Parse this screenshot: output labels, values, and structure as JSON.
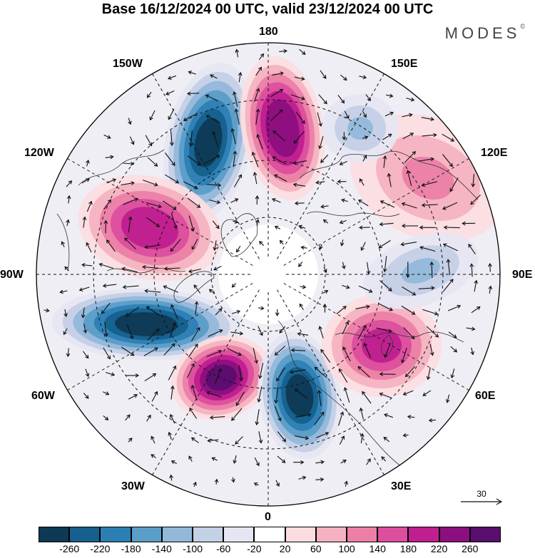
{
  "title": "Base 16/12/2024 00 UTC, valid 23/12/2024 00 UTC",
  "brand": {
    "name": "MODES",
    "mark": "©"
  },
  "longitude_labels": {
    "top": "180",
    "bottom": "0",
    "left": "90W",
    "right": "90E",
    "w150": "150W",
    "e150": "150E",
    "w120": "120W",
    "e120": "120E",
    "w60": "60W",
    "e60": "60E",
    "w30": "30W",
    "e30": "30E"
  },
  "reference_vector": {
    "label": "30"
  },
  "colorbar": {
    "ticks": [
      "-260",
      "-220",
      "-180",
      "-140",
      "-100",
      "-60",
      "-20",
      "20",
      "60",
      "100",
      "140",
      "180",
      "220",
      "260"
    ],
    "colors": [
      "#0e3955",
      "#15608e",
      "#2c7fb4",
      "#5b9dc9",
      "#93b8da",
      "#c4d0e6",
      "#e6e6f2",
      "#ffffff",
      "#fbdde0",
      "#f5b2c1",
      "#ec7fa8",
      "#dc4e9e",
      "#bf1f8f",
      "#8c0f80",
      "#5a0e6e"
    ]
  },
  "map": {
    "projection": "north-polar-stereographic",
    "field_anomalies": [
      {
        "name": "neg-150W",
        "value": -240
      },
      {
        "name": "pos-165E",
        "value": 230
      },
      {
        "name": "pos-105W",
        "value": 180
      },
      {
        "name": "neg-75W",
        "value": -250
      },
      {
        "name": "pos-35W",
        "value": 240
      },
      {
        "name": "neg-10E",
        "value": -250
      },
      {
        "name": "pos-45E",
        "value": 160
      },
      {
        "name": "pos-115E",
        "value": 70
      },
      {
        "name": "neg-85E",
        "value": -70
      },
      {
        "name": "neg-150E",
        "value": -70
      }
    ]
  }
}
